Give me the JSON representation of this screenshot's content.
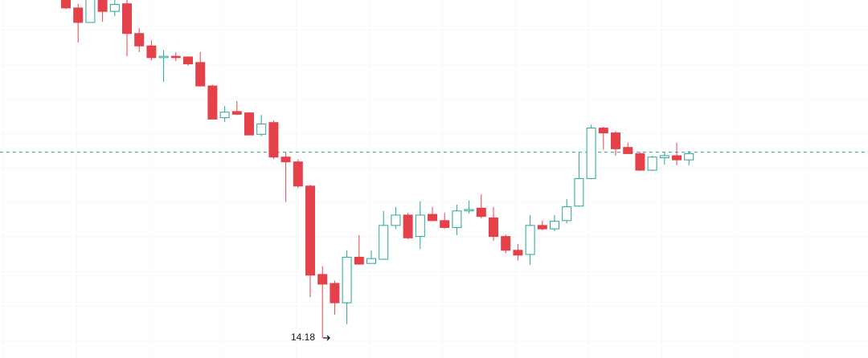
{
  "chart_data": {
    "type": "candlestick",
    "ylim": [
      13.89,
      19.075
    ],
    "up_color": "#26a69a",
    "down_color": "#e5414b",
    "price_line": 16.87,
    "price_line_color": "#26a69a",
    "open": [
      19.08,
      18.96,
      18.75,
      19.11,
      18.91,
      19.02,
      18.59,
      18.41,
      18.24,
      18.26,
      18.25,
      18.17,
      17.83,
      17.37,
      17.46,
      17.44,
      17.13,
      17.3,
      16.8,
      16.73,
      16.38,
      15.1,
      14.97,
      14.69,
      15.35,
      15.26,
      15.32,
      15.81,
      15.96,
      15.65,
      15.97,
      15.88,
      15.78,
      16.02,
      16.06,
      15.92,
      15.65,
      15.45,
      15.39,
      15.81,
      15.76,
      15.88,
      16.09,
      16.49,
      17.22,
      17.15,
      16.94,
      16.85,
      16.61,
      16.79,
      16.82,
      16.76
    ],
    "high": [
      19.13,
      19.02,
      19.13,
      19.13,
      19.08,
      19.08,
      18.67,
      18.49,
      18.35,
      18.32,
      18.26,
      18.32,
      17.85,
      17.54,
      17.61,
      17.45,
      17.41,
      17.33,
      16.87,
      16.77,
      16.4,
      15.22,
      15.01,
      15.45,
      15.67,
      15.45,
      16.02,
      16.08,
      15.99,
      16.16,
      16.08,
      15.99,
      16.11,
      16.17,
      16.26,
      16.08,
      15.68,
      15.54,
      15.96,
      15.88,
      15.96,
      16.19,
      16.87,
      17.27,
      17.24,
      17.18,
      17.01,
      16.87,
      16.82,
      16.87,
      17.01,
      16.89
    ],
    "low": [
      18.94,
      18.46,
      18.75,
      18.76,
      18.84,
      18.26,
      18.32,
      18.2,
      17.89,
      18.19,
      18.12,
      17.82,
      17.35,
      17.31,
      17.41,
      17.12,
      17.1,
      16.77,
      16.15,
      16.35,
      14.77,
      14.18,
      14.52,
      14.38,
      15.24,
      15.26,
      15.32,
      15.76,
      15.61,
      15.47,
      15.87,
      15.76,
      15.67,
      15.98,
      15.91,
      15.59,
      15.41,
      15.3,
      15.24,
      15.74,
      15.73,
      15.84,
      16.08,
      16.48,
      16.91,
      16.82,
      16.84,
      16.6,
      16.6,
      16.69,
      16.68,
      16.68
    ],
    "close": [
      18.96,
      18.75,
      19.1,
      18.91,
      19.01,
      18.59,
      18.41,
      18.24,
      18.26,
      18.24,
      18.15,
      17.83,
      17.35,
      17.45,
      17.42,
      17.12,
      17.28,
      16.8,
      16.73,
      16.38,
      15.09,
      14.96,
      14.69,
      15.35,
      15.25,
      15.33,
      15.81,
      15.96,
      15.63,
      15.96,
      15.88,
      15.78,
      16.02,
      16.04,
      15.94,
      15.65,
      15.45,
      15.38,
      15.81,
      15.76,
      15.87,
      16.08,
      16.49,
      17.22,
      17.15,
      16.92,
      16.85,
      16.61,
      16.8,
      16.82,
      16.76,
      16.85
    ]
  }
}
